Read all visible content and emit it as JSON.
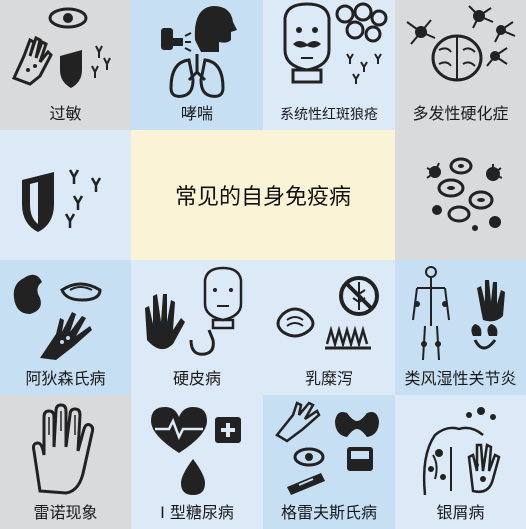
{
  "title": "常见的自身免疫病",
  "tiles": [
    {
      "label": "过敏"
    },
    {
      "label": "哮喘"
    },
    {
      "label": "系统性红斑狼疮"
    },
    {
      "label": "多发性硬化症"
    },
    {
      "label": "阿狄森氏病"
    },
    {
      "label": "硬皮病"
    },
    {
      "label": "乳糜泻"
    },
    {
      "label": "类风湿性关节炎"
    },
    {
      "label": "雷诺现象"
    },
    {
      "label": "I 型糖尿病"
    },
    {
      "label": "格雷夫斯氏病"
    },
    {
      "label": "银屑病"
    }
  ],
  "colors": {
    "grey": "#d9dadc",
    "light_blue": "#dce9f6",
    "blue": "#c6dff3",
    "center": "#fbf3d5"
  }
}
